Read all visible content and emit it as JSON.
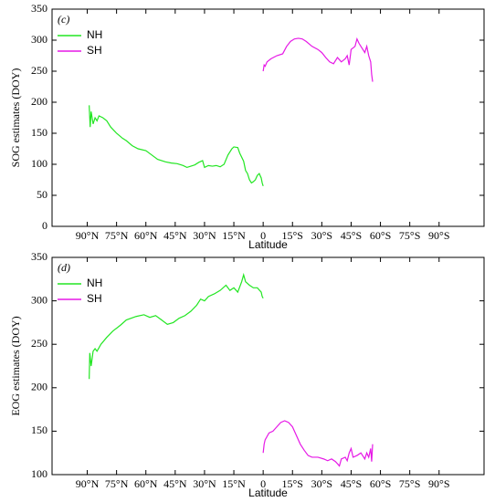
{
  "chart_data": [
    {
      "type": "line",
      "panel_label": "(c)",
      "ylabel": "SOG estimates (DOY)",
      "xlabel": "Latitude",
      "legend": "upper left",
      "xlim": [
        108,
        -113
      ],
      "ylim": [
        0,
        350
      ],
      "yticks": [
        0,
        50,
        100,
        150,
        200,
        250,
        300,
        350
      ],
      "xticks": [
        {
          "value": 90,
          "label": "90°N"
        },
        {
          "value": 75,
          "label": "75°N"
        },
        {
          "value": 60,
          "label": "60°N"
        },
        {
          "value": 45,
          "label": "45°N"
        },
        {
          "value": 30,
          "label": "30°N"
        },
        {
          "value": 15,
          "label": "15°N"
        },
        0,
        {
          "value": -15,
          "label": "15°S"
        },
        {
          "value": -30,
          "label": "30°S"
        },
        {
          "value": -45,
          "label": "45°S"
        },
        {
          "value": -60,
          "label": "60°S"
        },
        {
          "value": -75,
          "label": "75°S"
        },
        {
          "value": -90,
          "label": "90°S"
        }
      ],
      "series": [
        {
          "name": "NH",
          "color": "#22e622",
          "x": [
            89,
            88.5,
            88,
            87,
            86,
            85,
            84,
            82,
            80,
            78,
            75,
            72,
            70,
            67,
            64,
            60,
            57,
            54,
            50,
            47,
            44,
            41,
            39,
            37,
            35,
            33,
            31,
            30,
            28,
            26,
            24,
            22,
            20,
            18,
            16,
            15,
            13,
            12,
            10,
            9,
            8,
            7,
            6,
            5,
            4,
            3,
            2,
            1,
            0.5,
            0
          ],
          "values": [
            195,
            160,
            185,
            165,
            175,
            170,
            178,
            175,
            170,
            160,
            150,
            142,
            138,
            130,
            125,
            122,
            115,
            108,
            104,
            102,
            101,
            98,
            95,
            97,
            99,
            103,
            106,
            95,
            98,
            97,
            98,
            96,
            100,
            115,
            125,
            128,
            127,
            118,
            105,
            90,
            85,
            75,
            70,
            72,
            75,
            82,
            85,
            78,
            70,
            65
          ]
        },
        {
          "name": "SH",
          "color": "#e619e6",
          "x": [
            0,
            -0.5,
            -1,
            -2,
            -4,
            -7,
            -10,
            -12,
            -14,
            -16,
            -18,
            -20,
            -22,
            -25,
            -28,
            -30,
            -32,
            -34,
            -36,
            -38,
            -40,
            -42,
            -43,
            -44,
            -45,
            -47,
            -48,
            -49,
            -50,
            -51,
            -52,
            -53,
            -54,
            -55,
            -55.5,
            -56
          ],
          "values": [
            250,
            260,
            258,
            265,
            270,
            275,
            278,
            290,
            298,
            302,
            303,
            302,
            298,
            290,
            285,
            280,
            272,
            265,
            262,
            272,
            265,
            270,
            275,
            260,
            285,
            290,
            302,
            295,
            290,
            285,
            280,
            290,
            275,
            265,
            245,
            233
          ]
        }
      ]
    },
    {
      "type": "line",
      "panel_label": "(d)",
      "ylabel": "EOG estimates (DOY)",
      "xlabel": "Latitude",
      "legend": "upper left",
      "xlim": [
        108,
        -113
      ],
      "ylim": [
        100,
        350
      ],
      "yticks": [
        100,
        150,
        200,
        250,
        300,
        350
      ],
      "xticks": [
        {
          "value": 90,
          "label": "90°N"
        },
        {
          "value": 75,
          "label": "75°N"
        },
        {
          "value": 60,
          "label": "60°N"
        },
        {
          "value": 45,
          "label": "45°N"
        },
        {
          "value": 30,
          "label": "30°N"
        },
        {
          "value": 15,
          "label": "15°N"
        },
        0,
        {
          "value": -15,
          "label": "15°S"
        },
        {
          "value": -30,
          "label": "30°S"
        },
        {
          "value": -45,
          "label": "45°S"
        },
        {
          "value": -60,
          "label": "60°S"
        },
        {
          "value": -75,
          "label": "75°S"
        },
        {
          "value": -90,
          "label": "90°S"
        }
      ],
      "series": [
        {
          "name": "NH",
          "color": "#22e622",
          "x": [
            89,
            88.7,
            88,
            87,
            86,
            85,
            83,
            80,
            77,
            73,
            70,
            65,
            61,
            58,
            55,
            52,
            49,
            46,
            43,
            40,
            37,
            34,
            32,
            30,
            28,
            25,
            22,
            19,
            17,
            15,
            13,
            11,
            10,
            9,
            7,
            5,
            3,
            1,
            0.5,
            0
          ],
          "values": [
            210,
            240,
            225,
            242,
            245,
            242,
            250,
            258,
            265,
            272,
            278,
            282,
            284,
            281,
            283,
            278,
            273,
            275,
            280,
            283,
            288,
            295,
            302,
            300,
            305,
            308,
            312,
            318,
            312,
            315,
            310,
            322,
            330,
            322,
            318,
            315,
            315,
            310,
            305,
            303
          ]
        },
        {
          "name": "SH",
          "color": "#e619e6",
          "x": [
            0,
            -0.5,
            -1,
            -3,
            -5,
            -7,
            -9,
            -11,
            -13,
            -15,
            -17,
            -19,
            -21,
            -23,
            -25,
            -28,
            -31,
            -33,
            -35,
            -37,
            -39,
            -40,
            -42,
            -43,
            -44,
            -45,
            -46,
            -48,
            -50,
            -52,
            -53,
            -54,
            -55,
            -55.5,
            -56
          ],
          "values": [
            125,
            135,
            140,
            148,
            150,
            155,
            160,
            162,
            160,
            155,
            145,
            135,
            128,
            122,
            120,
            120,
            118,
            116,
            118,
            115,
            110,
            118,
            120,
            116,
            125,
            130,
            120,
            122,
            125,
            118,
            125,
            120,
            130,
            115,
            135
          ]
        }
      ]
    }
  ]
}
